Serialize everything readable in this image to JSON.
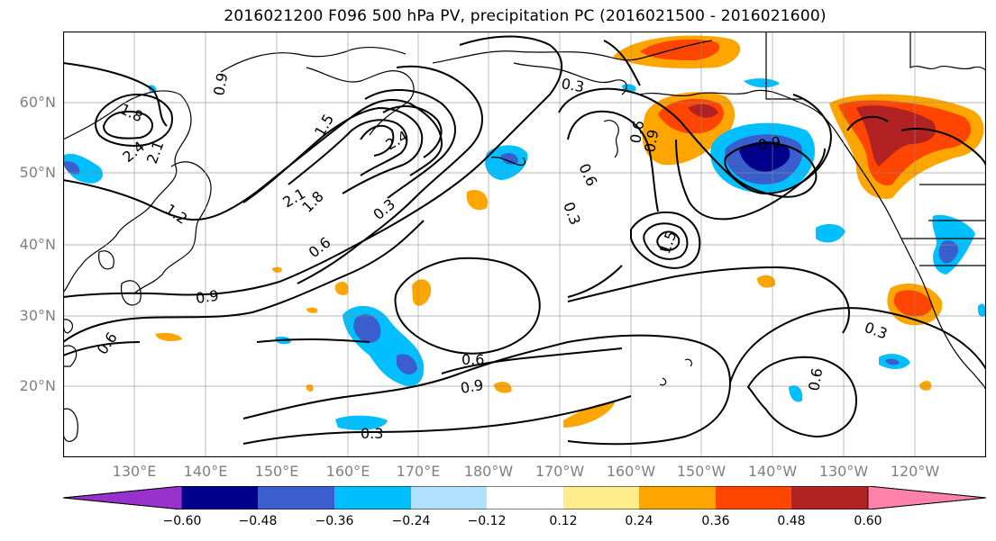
{
  "title": "2016021200 F096 500 hPa PV, precipitation PC (2016021500 - 2016021600)",
  "lat_labels": [
    "60°N",
    "50°N",
    "40°N",
    "30°N",
    "20°N"
  ],
  "lon_labels": [
    "130°E",
    "140°E",
    "150°E",
    "160°E",
    "170°E",
    "180°W",
    "170°W",
    "160°W",
    "150°W",
    "140°W",
    "130°W",
    "120°W"
  ],
  "contour_labels": [
    "0.9",
    "1.8",
    "2.4",
    "2.1",
    "1.2",
    "1.5",
    "2.4",
    "2.1",
    "1.8",
    "0.3",
    "0.6",
    "0.9",
    "0.6",
    "0.3",
    "0.6",
    "0.9",
    "0.6",
    "0.3",
    "0.9",
    "1.5",
    "0.9",
    "0.6",
    "0.3",
    "0.6",
    "0.3"
  ],
  "colorbar": {
    "ticks": [
      "−0.60",
      "−0.48",
      "−0.36",
      "−0.24",
      "−0.12",
      "0.12",
      "0.24",
      "0.36",
      "0.48",
      "0.60"
    ],
    "colors": [
      "#9932cc",
      "#00008b",
      "#3a5fcd",
      "#00bfff",
      "#b0e2ff",
      "#ffffff",
      "#ffec8b",
      "#ffa500",
      "#ff4500",
      "#b22222",
      "#ff82ab"
    ]
  }
}
